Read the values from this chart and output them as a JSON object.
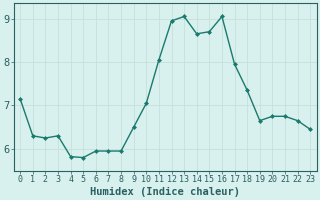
{
  "x": [
    0,
    1,
    2,
    3,
    4,
    5,
    6,
    7,
    8,
    9,
    10,
    11,
    12,
    13,
    14,
    15,
    16,
    17,
    18,
    19,
    20,
    21,
    22,
    23
  ],
  "y": [
    7.15,
    6.3,
    6.25,
    6.3,
    5.82,
    5.8,
    5.95,
    5.95,
    5.95,
    6.5,
    7.05,
    8.05,
    8.95,
    9.05,
    8.65,
    8.7,
    9.05,
    7.95,
    7.35,
    6.65,
    6.75,
    6.75,
    6.65,
    6.45
  ],
  "line_color": "#1a7a6e",
  "marker": "D",
  "marker_size": 2.0,
  "background_color": "#d8f0ee",
  "grid_color": "#c8e0dc",
  "xlabel": "Humidex (Indice chaleur)",
  "xlim": [
    -0.5,
    23.5
  ],
  "ylim": [
    5.5,
    9.35
  ],
  "yticks": [
    6,
    7,
    8,
    9
  ],
  "xticks": [
    0,
    1,
    2,
    3,
    4,
    5,
    6,
    7,
    8,
    9,
    10,
    11,
    12,
    13,
    14,
    15,
    16,
    17,
    18,
    19,
    20,
    21,
    22,
    23
  ],
  "tick_color": "#2a6060",
  "label_fontsize": 6.0,
  "axis_label_fontsize": 7.5,
  "linewidth": 1.0
}
